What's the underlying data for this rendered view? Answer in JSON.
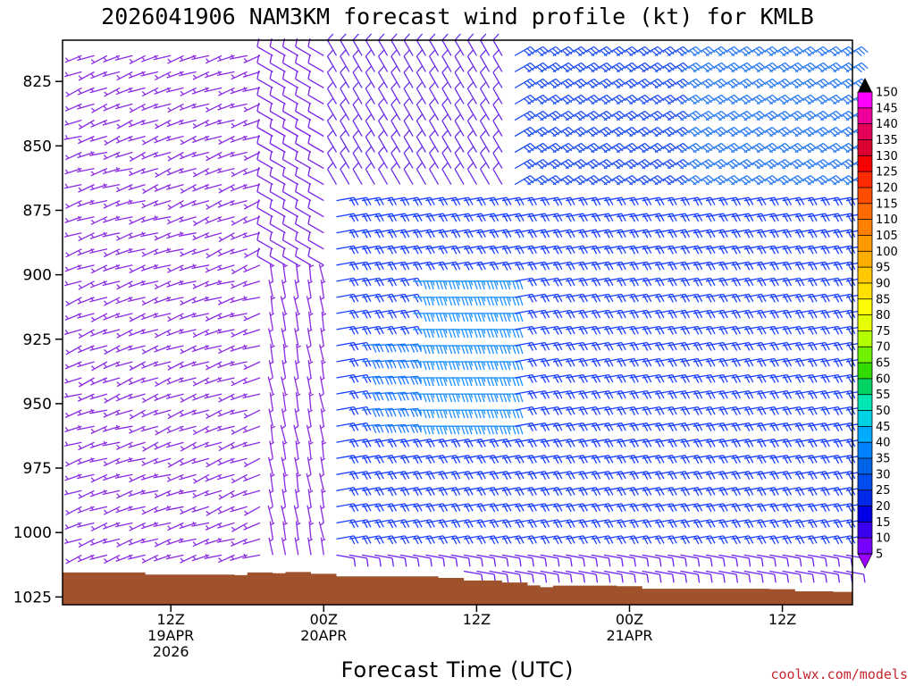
{
  "chart_data": {
    "type": "wind-barb-time-height",
    "title": "2026041906 NAM3KM forecast wind profile (kt) for KMLB",
    "xlabel": "Forecast Time (UTC)",
    "ylabel": "",
    "credit": "coolwx.com/models",
    "x_unit": "forecast hour",
    "xlim": [
      -2.5,
      59.5
    ],
    "ylim": [
      809,
      1028
    ],
    "y_axis_inverted": true,
    "x_ticks": [
      {
        "hour": 6,
        "line1": "12Z",
        "line2": "19APR",
        "line3": "2026"
      },
      {
        "hour": 18,
        "line1": "00Z",
        "line2": "20APR",
        "line3": ""
      },
      {
        "hour": 30,
        "line1": "12Z",
        "line2": "",
        "line3": ""
      },
      {
        "hour": 42,
        "line1": "00Z",
        "line2": "21APR",
        "line3": ""
      },
      {
        "hour": 54,
        "line1": "12Z",
        "line2": "",
        "line3": ""
      }
    ],
    "y_ticks": [
      {
        "value": 825,
        "label": "825"
      },
      {
        "value": 850,
        "label": "850"
      },
      {
        "value": 875,
        "label": "875"
      },
      {
        "value": 900,
        "label": "900"
      },
      {
        "value": 925,
        "label": "925"
      },
      {
        "value": 950,
        "label": "950"
      },
      {
        "value": 975,
        "label": "975"
      },
      {
        "value": 1000,
        "label": "1000"
      },
      {
        "value": 1025,
        "label": "1025"
      }
    ],
    "colorbar": {
      "unit": "kt",
      "labels": [
        "150",
        "145",
        "140",
        "135",
        "130",
        "125",
        "120",
        "115",
        "110",
        "105",
        "100",
        "95",
        "90",
        "85",
        "80",
        "75",
        "70",
        "65",
        "60",
        "55",
        "50",
        "45",
        "40",
        "35",
        "30",
        "25",
        "20",
        "15",
        "10",
        "5"
      ],
      "colors": [
        "#ff00ff",
        "#f0009a",
        "#e6005a",
        "#dc0030",
        "#f50000",
        "#ff2a00",
        "#ff4d00",
        "#ff6a00",
        "#ff8000",
        "#ff9900",
        "#ffae00",
        "#ffc800",
        "#ffe000",
        "#ffff00",
        "#e6ff00",
        "#b4ff00",
        "#6ef000",
        "#32dc00",
        "#00d264",
        "#00e6b4",
        "#00d2e6",
        "#00aaff",
        "#0082ff",
        "#0064e6",
        "#004bf0",
        "#0028e6",
        "#0000e6",
        "#3c00f0",
        "#7800ff"
      ],
      "top_arrow_color": "#000000",
      "bottom_arrow_color": "#9b00ff"
    },
    "terrain": {
      "color": "#a0522d",
      "surface_pressure_by_hour": [
        {
          "hour": -2.5,
          "p": 1015.5
        },
        {
          "hour": 0,
          "p": 1015.5
        },
        {
          "hour": 4,
          "p": 1016.3
        },
        {
          "hour": 11,
          "p": 1016.5
        },
        {
          "hour": 12,
          "p": 1015.5
        },
        {
          "hour": 14,
          "p": 1015.8
        },
        {
          "hour": 15,
          "p": 1015.3
        },
        {
          "hour": 17,
          "p": 1016.0
        },
        {
          "hour": 19,
          "p": 1017.0
        },
        {
          "hour": 27,
          "p": 1017.6
        },
        {
          "hour": 29,
          "p": 1018.6
        },
        {
          "hour": 32,
          "p": 1019.4
        },
        {
          "hour": 34,
          "p": 1020.5
        },
        {
          "hour": 35,
          "p": 1021.2
        },
        {
          "hour": 36,
          "p": 1020.6
        },
        {
          "hour": 41,
          "p": 1020.8
        },
        {
          "hour": 43,
          "p": 1021.8
        },
        {
          "hour": 53,
          "p": 1022.0
        },
        {
          "hour": 55,
          "p": 1022.8
        },
        {
          "hour": 58,
          "p": 1023.0
        },
        {
          "hour": 59.5,
          "p": 1022.2
        }
      ]
    },
    "wind_barbs": {
      "time_hours": "hourly from -1 to 59",
      "pressure_levels_hpa": "every 6.25 hPa from 815 to 1015 (below ground omitted)",
      "regimes": [
        {
          "hours": [
            -1,
            13
          ],
          "levels": "815-1015",
          "direction_deg": 250,
          "speed_kt": 6,
          "color": "#8a2be2"
        },
        {
          "hours": [
            14,
            19
          ],
          "levels": "815-900",
          "direction_deg": 300,
          "speed_kt": 8,
          "color": "#7b22e8"
        },
        {
          "hours": [
            14,
            18
          ],
          "levels": "900-1015",
          "direction_deg": 350,
          "speed_kt": 6,
          "color": "#8a2be2"
        },
        {
          "hours": [
            19,
            32
          ],
          "levels": "815-870",
          "direction_deg": 330,
          "speed_kt": 12,
          "color": "#6a2de8"
        },
        {
          "hours": [
            20,
            59
          ],
          "levels": "870-1005",
          "direction_deg": 80,
          "speed_kt": 22,
          "color": "#1a40ff"
        },
        {
          "hours": [
            25,
            32
          ],
          "levels": "900-960",
          "direction_deg": 90,
          "speed_kt": 35,
          "color": "#1e90ff"
        },
        {
          "hours": [
            33,
            59
          ],
          "levels": "815-870",
          "direction_deg": 60,
          "speed_kt": 28,
          "color": "#2050f0"
        },
        {
          "hours": [
            19,
            59
          ],
          "levels": "1005-1015",
          "direction_deg": 100,
          "speed_kt": 10,
          "color": "#6a20f0"
        }
      ]
    }
  }
}
